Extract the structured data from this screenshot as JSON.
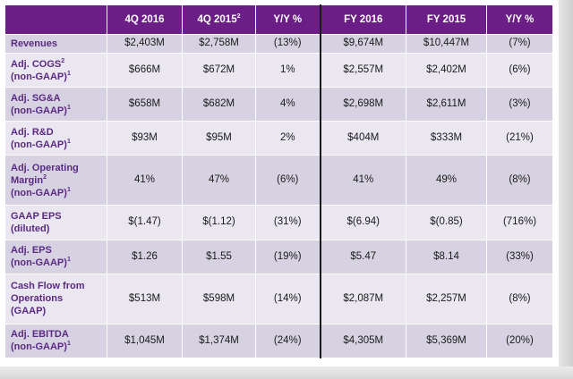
{
  "columns": [
    "4Q 2016",
    "4Q 2015",
    "Y/Y %",
    "FY 2016",
    "FY 2015",
    "Y/Y %"
  ],
  "column_sups": [
    "",
    "2",
    "",
    "",
    "",
    ""
  ],
  "rows": [
    {
      "label_lines": [
        {
          "text": "Revenues",
          "sup": ""
        }
      ],
      "values": [
        "$2,403M",
        "$2,758M",
        "(13%)",
        "$9,674M",
        "$10,447M",
        "(7%)"
      ]
    },
    {
      "label_lines": [
        {
          "text": "Adj. COGS",
          "sup": "2"
        },
        {
          "text": "(non-GAAP)",
          "sup": "1"
        }
      ],
      "values": [
        "$666M",
        "$672M",
        "1%",
        "$2,557M",
        "$2,402M",
        "(6%)"
      ]
    },
    {
      "label_lines": [
        {
          "text": "Adj. SG&A",
          "sup": ""
        },
        {
          "text": "(non-GAAP)",
          "sup": "1"
        }
      ],
      "values": [
        "$658M",
        "$682M",
        "4%",
        "$2,698M",
        "$2,611M",
        "(3%)"
      ]
    },
    {
      "label_lines": [
        {
          "text": "Adj. R&D",
          "sup": ""
        },
        {
          "text": "(non-GAAP)",
          "sup": "1"
        }
      ],
      "values": [
        "$93M",
        "$95M",
        "2%",
        "$404M",
        "$333M",
        "(21%)"
      ]
    },
    {
      "label_lines": [
        {
          "text": "Adj. Operating",
          "sup": ""
        },
        {
          "text": "Margin",
          "sup": "2"
        },
        {
          "text": "(non-GAAP)",
          "sup": "1"
        }
      ],
      "values": [
        "41%",
        "47%",
        "(6%)",
        "41%",
        "49%",
        "(8%)"
      ]
    },
    {
      "label_lines": [
        {
          "text": "GAAP EPS",
          "sup": ""
        },
        {
          "text": "(diluted)",
          "sup": ""
        }
      ],
      "values": [
        "$(1.47)",
        "$(1.12)",
        "(31%)",
        "$(6.94)",
        "$(0.85)",
        "(716%)"
      ]
    },
    {
      "label_lines": [
        {
          "text": "Adj. EPS",
          "sup": ""
        },
        {
          "text": "(non-GAAP)",
          "sup": "1"
        }
      ],
      "values": [
        "$1.26",
        "$1.55",
        "(19%)",
        "$5.47",
        "$8.14",
        "(33%)"
      ]
    },
    {
      "label_lines": [
        {
          "text": "Cash Flow from",
          "sup": ""
        },
        {
          "text": "Operations",
          "sup": ""
        },
        {
          "text": "(GAAP)",
          "sup": ""
        }
      ],
      "values": [
        "$513M",
        "$598M",
        "(14%)",
        "$2,087M",
        "$2,257M",
        "(8%)"
      ]
    },
    {
      "label_lines": [
        {
          "text": "Adj. EBITDA",
          "sup": ""
        },
        {
          "text": "(non-GAAP)",
          "sup": "1"
        }
      ],
      "values": [
        "$1,045M",
        "$1,374M",
        "(24%)",
        "$4,305M",
        "$5,369M",
        "(20%)"
      ]
    }
  ],
  "colors": {
    "header": "#6b1e86",
    "label_text": "#5a2a82",
    "row_dark": "#d7d2e2",
    "row_light": "#eae7f0"
  }
}
